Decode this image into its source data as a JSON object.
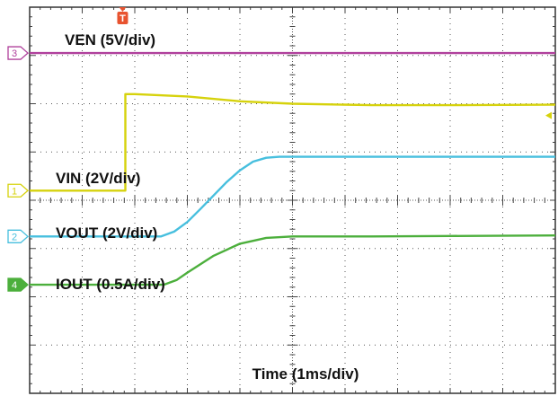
{
  "chart_data": {
    "type": "line",
    "divisions": {
      "x": 10,
      "y": 8
    },
    "xlabel": "Time (1ms/div)",
    "series": [
      {
        "name": "VEN (5V/div)",
        "channel": "3",
        "color": "#b0409c",
        "zero_div": 7.05,
        "points": [
          [
            0,
            7.05
          ],
          [
            10,
            7.05
          ]
        ]
      },
      {
        "name": "VIN (2V/div)",
        "channel": "1",
        "color": "#d6d20c",
        "zero_div": 4.2,
        "points": [
          [
            0,
            4.2
          ],
          [
            1.82,
            4.2
          ],
          [
            1.82,
            6.2
          ],
          [
            2.0,
            6.2
          ],
          [
            3.0,
            6.15
          ],
          [
            4.0,
            6.05
          ],
          [
            5.0,
            6.0
          ],
          [
            6.5,
            5.97
          ],
          [
            8.0,
            5.97
          ],
          [
            10,
            5.98
          ]
        ]
      },
      {
        "name": "VOUT (2V/div)",
        "channel": "2",
        "color": "#47bfde",
        "zero_div": 3.25,
        "points": [
          [
            0,
            3.25
          ],
          [
            2.5,
            3.25
          ],
          [
            2.75,
            3.35
          ],
          [
            3.0,
            3.55
          ],
          [
            3.25,
            3.82
          ],
          [
            3.5,
            4.1
          ],
          [
            3.75,
            4.38
          ],
          [
            4.0,
            4.62
          ],
          [
            4.25,
            4.8
          ],
          [
            4.5,
            4.88
          ],
          [
            4.75,
            4.9
          ],
          [
            6.0,
            4.9
          ],
          [
            8.0,
            4.9
          ],
          [
            10,
            4.9
          ]
        ]
      },
      {
        "name": "IOUT (0.5A/div)",
        "channel": "4",
        "color": "#4caf3c",
        "zero_div": 2.25,
        "points": [
          [
            0,
            2.25
          ],
          [
            2.55,
            2.25
          ],
          [
            2.8,
            2.35
          ],
          [
            3.0,
            2.5
          ],
          [
            3.5,
            2.85
          ],
          [
            4.0,
            3.1
          ],
          [
            4.5,
            3.22
          ],
          [
            5.0,
            3.25
          ],
          [
            6.5,
            3.25
          ],
          [
            8.0,
            3.26
          ],
          [
            10,
            3.27
          ]
        ]
      }
    ],
    "trigger": {
      "label": "T",
      "x_div": 1.82
    },
    "legend": "inline"
  }
}
